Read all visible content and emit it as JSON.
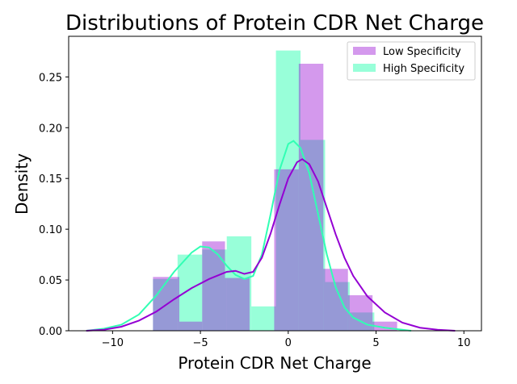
{
  "chart_data": {
    "type": "histogram-kde",
    "title": "Distributions of Protein CDR Net Charge",
    "xlabel": "Protein CDR Net Charge",
    "ylabel": "Density",
    "xlim": [
      -12.5,
      11
    ],
    "ylim": [
      0,
      0.29
    ],
    "xticks": [
      -10,
      -5,
      0,
      5,
      10
    ],
    "yticks": [
      0.0,
      0.05,
      0.1,
      0.15,
      0.2,
      0.25
    ],
    "ytick_labels": [
      "0.00",
      "0.05",
      "0.10",
      "0.15",
      "0.20",
      "0.25"
    ],
    "grid": false,
    "legend_position": "top-right",
    "series": [
      {
        "name": "High Specificity",
        "color": "#32ffb4",
        "bar_opacity": 0.5,
        "bins": [
          {
            "x0": -7.7,
            "x1": -6.3,
            "density": 0.051
          },
          {
            "x0": -6.3,
            "x1": -4.9,
            "density": 0.075
          },
          {
            "x0": -4.9,
            "x1": -3.5,
            "density": 0.08
          },
          {
            "x0": -3.5,
            "x1": -2.1,
            "density": 0.093
          },
          {
            "x0": -2.1,
            "x1": -0.7,
            "density": 0.024
          },
          {
            "x0": -0.7,
            "x1": 0.7,
            "density": 0.276
          },
          {
            "x0": 0.7,
            "x1": 2.1,
            "density": 0.188
          },
          {
            "x0": 2.1,
            "x1": 3.5,
            "density": 0.048
          },
          {
            "x0": 3.5,
            "x1": 4.9,
            "density": 0.018
          }
        ],
        "kde": [
          [
            -11.5,
            0.0
          ],
          [
            -10.5,
            0.002
          ],
          [
            -9.5,
            0.006
          ],
          [
            -8.5,
            0.016
          ],
          [
            -7.5,
            0.035
          ],
          [
            -6.5,
            0.058
          ],
          [
            -5.5,
            0.077
          ],
          [
            -5.0,
            0.083
          ],
          [
            -4.5,
            0.082
          ],
          [
            -4.0,
            0.075
          ],
          [
            -3.5,
            0.064
          ],
          [
            -3.0,
            0.055
          ],
          [
            -2.5,
            0.051
          ],
          [
            -2.0,
            0.054
          ],
          [
            -1.5,
            0.075
          ],
          [
            -1.0,
            0.115
          ],
          [
            -0.5,
            0.158
          ],
          [
            0.0,
            0.184
          ],
          [
            0.3,
            0.187
          ],
          [
            0.7,
            0.18
          ],
          [
            1.2,
            0.155
          ],
          [
            1.7,
            0.115
          ],
          [
            2.2,
            0.075
          ],
          [
            2.7,
            0.043
          ],
          [
            3.2,
            0.023
          ],
          [
            3.7,
            0.013
          ],
          [
            4.5,
            0.006
          ],
          [
            5.5,
            0.003
          ],
          [
            6.5,
            0.001
          ],
          [
            7.0,
            0.0
          ]
        ]
      },
      {
        "name": "Low Specificity",
        "color": "#9400d3",
        "bar_opacity": 0.4,
        "bins": [
          {
            "x0": -7.7,
            "x1": -6.2,
            "density": 0.053
          },
          {
            "x0": -6.2,
            "x1": -4.9,
            "density": 0.009
          },
          {
            "x0": -4.9,
            "x1": -3.6,
            "density": 0.088
          },
          {
            "x0": -3.6,
            "x1": -2.2,
            "density": 0.052
          },
          {
            "x0": -2.2,
            "x1": -0.8,
            "density": 0.0
          },
          {
            "x0": -0.8,
            "x1": 0.6,
            "density": 0.159
          },
          {
            "x0": 0.6,
            "x1": 2.0,
            "density": 0.263
          },
          {
            "x0": 2.0,
            "x1": 3.4,
            "density": 0.061
          },
          {
            "x0": 3.4,
            "x1": 4.8,
            "density": 0.035
          },
          {
            "x0": 4.8,
            "x1": 6.2,
            "density": 0.009
          }
        ],
        "kde": [
          [
            -11.5,
            0.0
          ],
          [
            -10.5,
            0.001
          ],
          [
            -9.5,
            0.004
          ],
          [
            -8.5,
            0.01
          ],
          [
            -7.5,
            0.019
          ],
          [
            -6.5,
            0.031
          ],
          [
            -5.5,
            0.042
          ],
          [
            -4.5,
            0.051
          ],
          [
            -3.5,
            0.058
          ],
          [
            -3.0,
            0.059
          ],
          [
            -2.5,
            0.056
          ],
          [
            -2.0,
            0.058
          ],
          [
            -1.5,
            0.072
          ],
          [
            -1.0,
            0.096
          ],
          [
            -0.5,
            0.124
          ],
          [
            0.0,
            0.15
          ],
          [
            0.5,
            0.166
          ],
          [
            0.8,
            0.169
          ],
          [
            1.2,
            0.164
          ],
          [
            1.7,
            0.147
          ],
          [
            2.2,
            0.121
          ],
          [
            2.7,
            0.095
          ],
          [
            3.2,
            0.072
          ],
          [
            3.7,
            0.054
          ],
          [
            4.5,
            0.034
          ],
          [
            5.5,
            0.018
          ],
          [
            6.5,
            0.008
          ],
          [
            7.5,
            0.003
          ],
          [
            8.5,
            0.001
          ],
          [
            9.5,
            0.0
          ]
        ]
      }
    ],
    "legend": [
      {
        "label": "Low Specificity",
        "color": "#9400d3",
        "opacity": 0.4
      },
      {
        "label": "High Specificity",
        "color": "#32ffb4",
        "opacity": 0.5
      }
    ]
  }
}
